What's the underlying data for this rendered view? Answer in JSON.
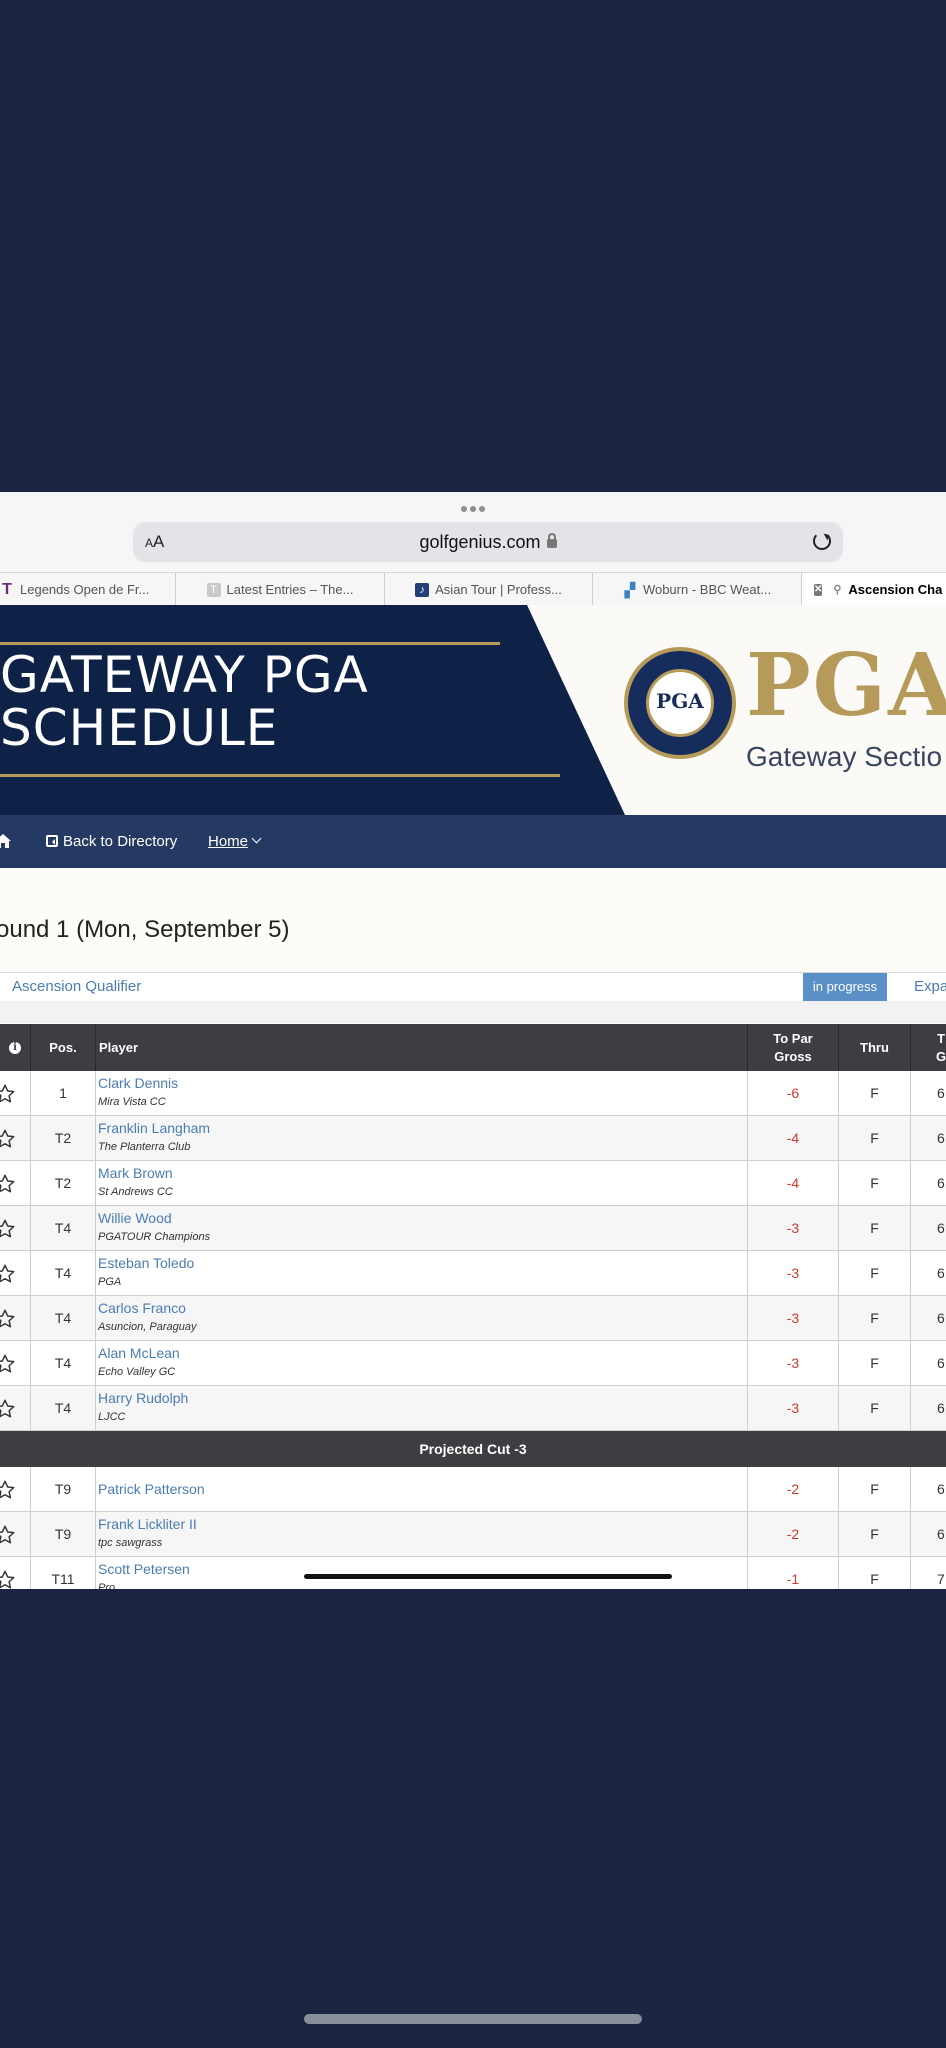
{
  "browser": {
    "aa_small": "A",
    "aa_large": "A",
    "domain": "golfgenius.com",
    "tabs": [
      {
        "label": "Legends Open de Fr...",
        "icon": "T",
        "color": "#6b2a7a"
      },
      {
        "label": "Latest Entries – The...",
        "icon": "T",
        "color": "#c9c9cc"
      },
      {
        "label": "Asian Tour | Profess...",
        "icon": "♪",
        "color": "#23407a"
      },
      {
        "label": "Woburn - BBC Weat...",
        "icon": "▞",
        "color": "#3b82c4"
      },
      {
        "label": "Ascension Cha",
        "icon": "⚲",
        "color": "#888"
      }
    ]
  },
  "banner": {
    "title_line1": "GATEWAY PGA",
    "title_line2": "SCHEDULE",
    "logo_word": "PGA",
    "section_word": "Gateway Sectio",
    "seal_text": "PGA"
  },
  "nav": {
    "back_label": "Back to Directory",
    "home_label": "Home"
  },
  "page": {
    "round_title": "ound 1 (Mon, September 5)",
    "event_name": "Ascension Qualifier",
    "status_badge": "in progress",
    "expand_label": "Expa"
  },
  "table": {
    "headers": {
      "info": "i",
      "pos": "Pos.",
      "player": "Player",
      "to_par_1": "To Par",
      "to_par_2": "Gross",
      "thru": "Thru",
      "total_1": "T",
      "total_2": "G"
    },
    "rows": [
      {
        "pos": "1",
        "name": "Clark Dennis",
        "club": "Mira Vista CC",
        "to_par": "-6",
        "thru": "F",
        "total": "6"
      },
      {
        "pos": "T2",
        "name": "Franklin Langham",
        "club": "The Planterra Club",
        "to_par": "-4",
        "thru": "F",
        "total": "6"
      },
      {
        "pos": "T2",
        "name": "Mark Brown",
        "club": "St Andrews CC",
        "to_par": "-4",
        "thru": "F",
        "total": "6"
      },
      {
        "pos": "T4",
        "name": "Willie Wood",
        "club": "PGATOUR Champions",
        "to_par": "-3",
        "thru": "F",
        "total": "6"
      },
      {
        "pos": "T4",
        "name": "Esteban Toledo",
        "club": "PGA",
        "to_par": "-3",
        "thru": "F",
        "total": "6"
      },
      {
        "pos": "T4",
        "name": "Carlos Franco",
        "club": "Asuncion, Paraguay",
        "to_par": "-3",
        "thru": "F",
        "total": "6"
      },
      {
        "pos": "T4",
        "name": "Alan McLean",
        "club": "Echo Valley GC",
        "to_par": "-3",
        "thru": "F",
        "total": "6"
      },
      {
        "pos": "T4",
        "name": "Harry Rudolph",
        "club": "LJCC",
        "to_par": "-3",
        "thru": "F",
        "total": "6"
      }
    ],
    "cut_label": "Projected Cut -3",
    "rows_after_cut": [
      {
        "pos": "T9",
        "name": "Patrick Patterson",
        "club": "",
        "to_par": "-2",
        "thru": "F",
        "total": "6"
      },
      {
        "pos": "T9",
        "name": "Frank Lickliter II",
        "club": "tpc sawgrass",
        "to_par": "-2",
        "thru": "F",
        "total": "6"
      },
      {
        "pos": "T11",
        "name": "Scott Petersen",
        "club": "Pro",
        "to_par": "-1",
        "thru": "F",
        "total": "7"
      }
    ]
  }
}
